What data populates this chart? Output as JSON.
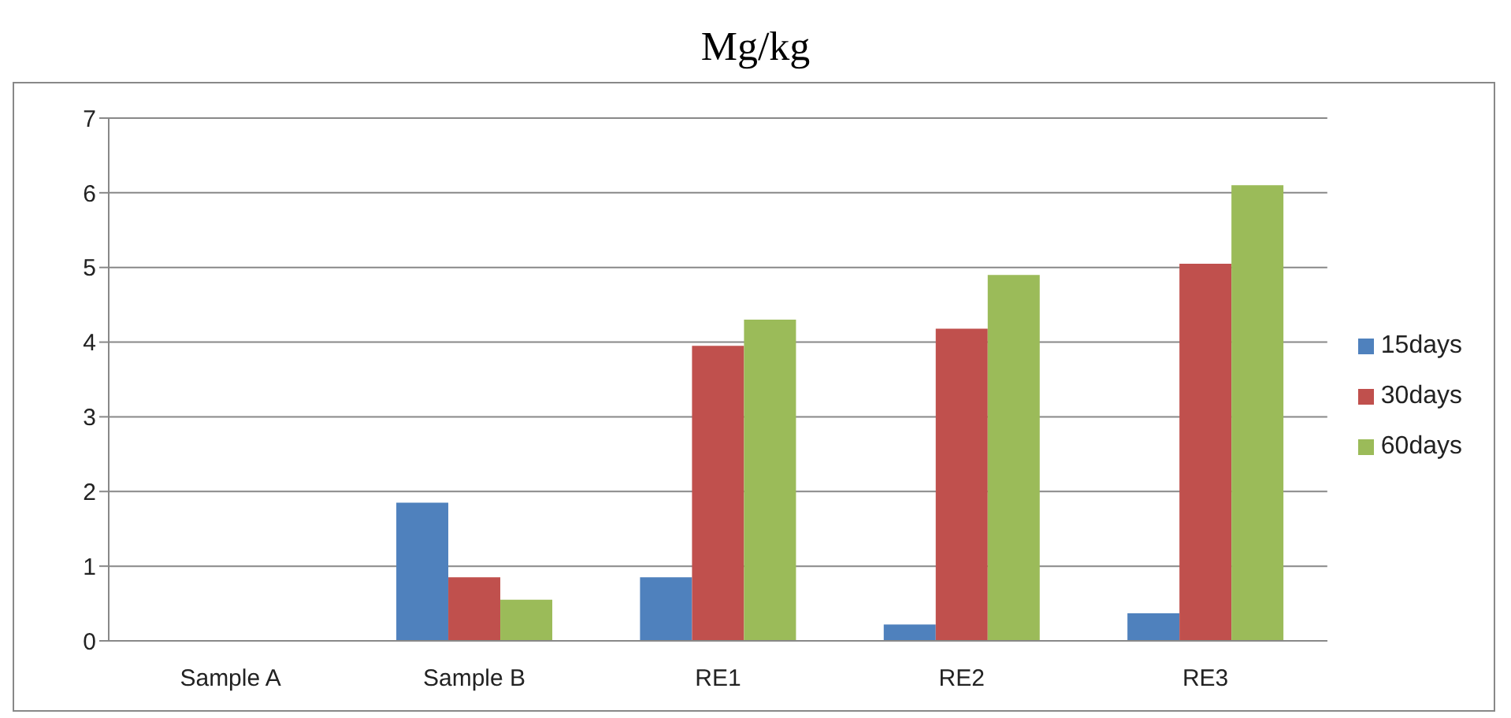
{
  "chart_data": {
    "type": "bar",
    "title": "Mg/kg",
    "categories": [
      "Sample A",
      "Sample B",
      "RE1",
      "RE2",
      "RE3"
    ],
    "series": [
      {
        "name": "15days",
        "color": "#4f81bd",
        "values": [
          0,
          1.85,
          0.85,
          0.22,
          0.37
        ]
      },
      {
        "name": "30days",
        "color": "#c0504d",
        "values": [
          0,
          0.85,
          3.95,
          4.18,
          5.05
        ]
      },
      {
        "name": "60days",
        "color": "#9bbb59",
        "values": [
          0,
          0.55,
          4.3,
          4.9,
          6.1
        ]
      }
    ],
    "ylim": [
      0,
      7
    ],
    "yticks": [
      0,
      1,
      2,
      3,
      4,
      5,
      6,
      7
    ],
    "grid": "y",
    "legend": "right"
  }
}
